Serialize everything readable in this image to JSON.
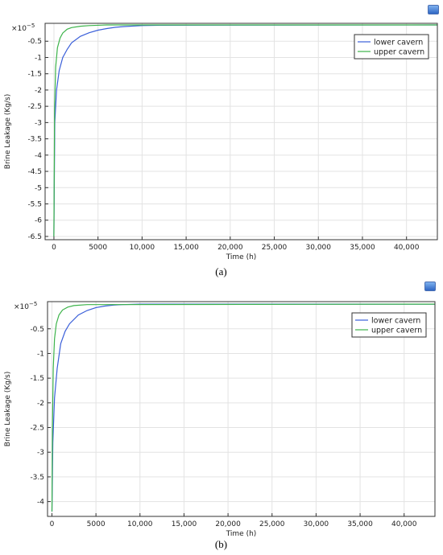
{
  "chart_data": [
    {
      "type": "line",
      "caption": "(a)",
      "xlabel": "Time (h)",
      "ylabel": "Brine Leakage (Kg/s)",
      "y_multiplier": "×10",
      "y_multiplier_exp": "−5",
      "xlim": [
        -1000,
        43500
      ],
      "ylim": [
        -6.6,
        0.05
      ],
      "x_ticks": [
        0,
        5000,
        10000,
        15000,
        20000,
        25000,
        30000,
        35000,
        40000
      ],
      "x_tick_labels": [
        "0",
        "5000",
        "10,000",
        "15,000",
        "20,000",
        "25,000",
        "30,000",
        "35,000",
        "40,000"
      ],
      "y_ticks": [
        -0.5,
        -1,
        -1.5,
        -2,
        -2.5,
        -3,
        -3.5,
        -4,
        -4.5,
        -5,
        -5.5,
        -6,
        -6.5
      ],
      "y_tick_labels": [
        "-0.5",
        "-1",
        "-1.5",
        "-2",
        "-2.5",
        "-3",
        "-3.5",
        "-4",
        "-4.5",
        "-5",
        "-5.5",
        "-6",
        "-6.5"
      ],
      "grid": true,
      "legend_position": "top-right",
      "series": [
        {
          "name": "lower cavern",
          "color": "#3a5fd9",
          "x": [
            0,
            100,
            300,
            600,
            1000,
            1500,
            2000,
            3000,
            4000,
            5000,
            6000,
            7000,
            8000,
            10000,
            12000,
            43500
          ],
          "y": [
            -6.5,
            -3.0,
            -2.0,
            -1.4,
            -1.0,
            -0.75,
            -0.55,
            -0.35,
            -0.24,
            -0.16,
            -0.11,
            -0.07,
            -0.05,
            -0.02,
            -0.01,
            0.0
          ]
        },
        {
          "name": "upper cavern",
          "color": "#3cb34a",
          "x": [
            0,
            80,
            200,
            400,
            700,
            1000,
            1500,
            2000,
            3000,
            4000,
            6000,
            43500
          ],
          "y": [
            -6.5,
            -2.5,
            -1.3,
            -0.7,
            -0.4,
            -0.25,
            -0.13,
            -0.08,
            -0.04,
            -0.02,
            0.0,
            0.0
          ]
        }
      ]
    },
    {
      "type": "line",
      "caption": "(b)",
      "xlabel": "Time (h)",
      "ylabel": "Brine Leakage (Kg/s)",
      "y_multiplier": "×10",
      "y_multiplier_exp": "−5",
      "xlim": [
        -500,
        43500
      ],
      "ylim": [
        -4.3,
        0.05
      ],
      "x_ticks": [
        0,
        5000,
        10000,
        15000,
        20000,
        25000,
        30000,
        35000,
        40000
      ],
      "x_tick_labels": [
        "0",
        "5000",
        "10,000",
        "15,000",
        "20,000",
        "25,000",
        "30,000",
        "35,000",
        "40,000"
      ],
      "y_ticks": [
        -0.5,
        -1,
        -1.5,
        -2,
        -2.5,
        -3,
        -3.5,
        -4
      ],
      "y_tick_labels": [
        "-0.5",
        "-1",
        "-1.5",
        "-2",
        "-2.5",
        "-3",
        "-3.5",
        "-4"
      ],
      "grid": true,
      "legend_position": "top-right",
      "series": [
        {
          "name": "lower cavern",
          "color": "#3a5fd9",
          "x": [
            0,
            100,
            300,
            600,
            1000,
            1500,
            2000,
            3000,
            4000,
            5000,
            6000,
            7000,
            8000,
            10000,
            43500
          ],
          "y": [
            -4.2,
            -2.8,
            -1.9,
            -1.3,
            -0.8,
            -0.55,
            -0.4,
            -0.22,
            -0.13,
            -0.07,
            -0.04,
            -0.02,
            -0.01,
            0.0,
            0.0
          ]
        },
        {
          "name": "upper cavern",
          "color": "#3cb34a",
          "x": [
            0,
            60,
            150,
            300,
            500,
            800,
            1200,
            1800,
            2500,
            4000,
            43500
          ],
          "y": [
            -4.2,
            -2.5,
            -1.3,
            -0.7,
            -0.4,
            -0.22,
            -0.12,
            -0.06,
            -0.03,
            -0.01,
            0.0
          ]
        }
      ]
    }
  ]
}
